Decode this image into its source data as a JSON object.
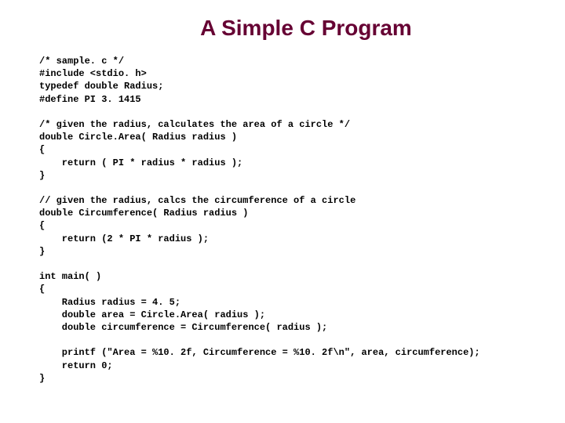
{
  "title": {
    "text": "A Simple C Program",
    "color": "#660033",
    "fontsize": 28
  },
  "code": {
    "text": "/* sample. c */\n#include <stdio. h>\ntypedef double Radius;\n#define PI 3. 1415\n\n/* given the radius, calculates the area of a circle */\ndouble Circle.Area( Radius radius )\n{\n    return ( PI * radius * radius );\n}\n\n// given the radius, calcs the circumference of a circle\ndouble Circumference( Radius radius )\n{\n    return (2 * PI * radius );\n}\n\nint main( )\n{\n    Radius radius = 4. 5;\n    double area = Circle.Area( radius );\n    double circumference = Circumference( radius );\n\n    printf (\"Area = %10. 2f, Circumference = %10. 2f\\n\", area, circumference);\n    return 0;\n}",
    "color": "#000000",
    "fontsize": 12
  }
}
